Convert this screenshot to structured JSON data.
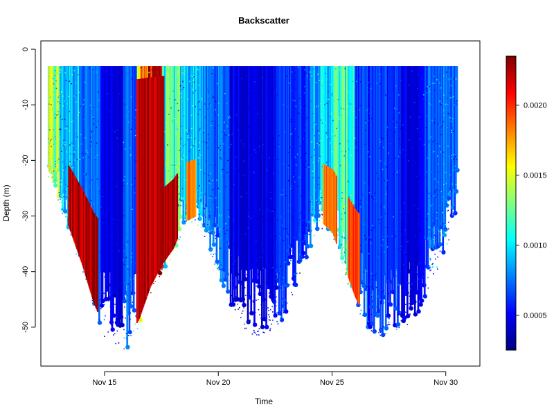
{
  "chart_data": {
    "type": "scatter",
    "title": "Backscatter",
    "xlabel": "Time",
    "ylabel": "Depth (m)",
    "x_unit": "date (November)",
    "xlim": [
      12.2,
      31.5
    ],
    "ylim": [
      -57,
      1.5
    ],
    "x_ticks": [
      {
        "value": 15,
        "label": "Nov 15"
      },
      {
        "value": 20,
        "label": "Nov 20"
      },
      {
        "value": 25,
        "label": "Nov 25"
      },
      {
        "value": 30,
        "label": "Nov 30"
      }
    ],
    "y_ticks": [
      {
        "value": 0,
        "label": "0"
      },
      {
        "value": -10,
        "label": "-10"
      },
      {
        "value": -20,
        "label": "-20"
      },
      {
        "value": -30,
        "label": "-30"
      },
      {
        "value": -40,
        "label": "-40"
      },
      {
        "value": -50,
        "label": "-50"
      }
    ],
    "grid": false,
    "colorbar": {
      "min": 0.00025,
      "max": 0.00235,
      "colormap": "jet",
      "ticks": [
        {
          "value": 0.0005,
          "label": "0.0005"
        },
        {
          "value": 0.001,
          "label": "0.0010"
        },
        {
          "value": 0.0015,
          "label": "0.0015"
        },
        {
          "value": 0.002,
          "label": "0.0020"
        }
      ],
      "stops": [
        "#00007f",
        "#0000ff",
        "#007fff",
        "#00ffff",
        "#7fff7f",
        "#ffff00",
        "#ff7f00",
        "#ff0000",
        "#7f0000"
      ]
    },
    "surface_depth": -3,
    "profile_max_depth": [
      {
        "x": 12.5,
        "depth": -23
      },
      {
        "x": 13.0,
        "depth": -28
      },
      {
        "x": 13.5,
        "depth": -34
      },
      {
        "x": 14.0,
        "depth": -40
      },
      {
        "x": 14.5,
        "depth": -47
      },
      {
        "x": 15.0,
        "depth": -52
      },
      {
        "x": 15.5,
        "depth": -54
      },
      {
        "x": 16.0,
        "depth": -54
      },
      {
        "x": 16.5,
        "depth": -50
      },
      {
        "x": 17.0,
        "depth": -44
      },
      {
        "x": 17.5,
        "depth": -40
      },
      {
        "x": 18.0,
        "depth": -37
      },
      {
        "x": 18.5,
        "depth": -32
      },
      {
        "x": 19.0,
        "depth": -31
      },
      {
        "x": 19.5,
        "depth": -35
      },
      {
        "x": 20.0,
        "depth": -41
      },
      {
        "x": 20.5,
        "depth": -46
      },
      {
        "x": 21.0,
        "depth": -50
      },
      {
        "x": 21.5,
        "depth": -52
      },
      {
        "x": 22.0,
        "depth": -51
      },
      {
        "x": 22.5,
        "depth": -51
      },
      {
        "x": 23.0,
        "depth": -47
      },
      {
        "x": 23.5,
        "depth": -41
      },
      {
        "x": 24.0,
        "depth": -36
      },
      {
        "x": 24.5,
        "depth": -32
      },
      {
        "x": 25.0,
        "depth": -34
      },
      {
        "x": 25.5,
        "depth": -40
      },
      {
        "x": 26.0,
        "depth": -46
      },
      {
        "x": 26.5,
        "depth": -50
      },
      {
        "x": 27.0,
        "depth": -52
      },
      {
        "x": 27.5,
        "depth": -51
      },
      {
        "x": 28.0,
        "depth": -50
      },
      {
        "x": 28.5,
        "depth": -49
      },
      {
        "x": 29.0,
        "depth": -46
      },
      {
        "x": 29.5,
        "depth": -41
      },
      {
        "x": 30.0,
        "depth": -36
      },
      {
        "x": 30.5,
        "depth": -28
      }
    ],
    "backscatter_bands": [
      {
        "x_start": 12.5,
        "x_end": 13.0,
        "value": 0.0013
      },
      {
        "x_start": 13.0,
        "x_end": 14.0,
        "value": 0.0009
      },
      {
        "x_start": 14.0,
        "x_end": 14.8,
        "value": 0.0007
      },
      {
        "x_start": 14.8,
        "x_end": 15.8,
        "value": 0.00042
      },
      {
        "x_start": 15.8,
        "x_end": 16.4,
        "value": 0.0007
      },
      {
        "x_start": 16.4,
        "x_end": 16.9,
        "value": 0.0016
      },
      {
        "x_start": 16.9,
        "x_end": 17.5,
        "value": 0.0023
      },
      {
        "x_start": 17.5,
        "x_end": 18.3,
        "value": 0.0011
      },
      {
        "x_start": 18.3,
        "x_end": 19.3,
        "value": 0.0009
      },
      {
        "x_start": 19.3,
        "x_end": 20.5,
        "value": 0.0007
      },
      {
        "x_start": 20.5,
        "x_end": 22.5,
        "value": 0.00045
      },
      {
        "x_start": 22.5,
        "x_end": 24.0,
        "value": 0.0006
      },
      {
        "x_start": 24.0,
        "x_end": 24.9,
        "value": 0.0009
      },
      {
        "x_start": 24.9,
        "x_end": 26.0,
        "value": 0.0011
      },
      {
        "x_start": 26.0,
        "x_end": 28.0,
        "value": 0.0006
      },
      {
        "x_start": 28.0,
        "x_end": 29.0,
        "value": 0.00045
      },
      {
        "x_start": 29.0,
        "x_end": 30.5,
        "value": 0.0007
      }
    ],
    "high_backscatter_near_bottom": [
      {
        "x_start": 13.4,
        "x_end": 14.7,
        "value": 0.0023
      },
      {
        "x_start": 16.4,
        "x_end": 17.6,
        "value": 0.0023
      },
      {
        "x_start": 17.6,
        "x_end": 18.2,
        "value": 0.0023
      },
      {
        "x_start": 18.6,
        "x_end": 19.0,
        "value": 0.0019
      },
      {
        "x_start": 24.6,
        "x_end": 25.2,
        "value": 0.0019
      },
      {
        "x_start": 25.7,
        "x_end": 26.2,
        "value": 0.002
      }
    ]
  }
}
